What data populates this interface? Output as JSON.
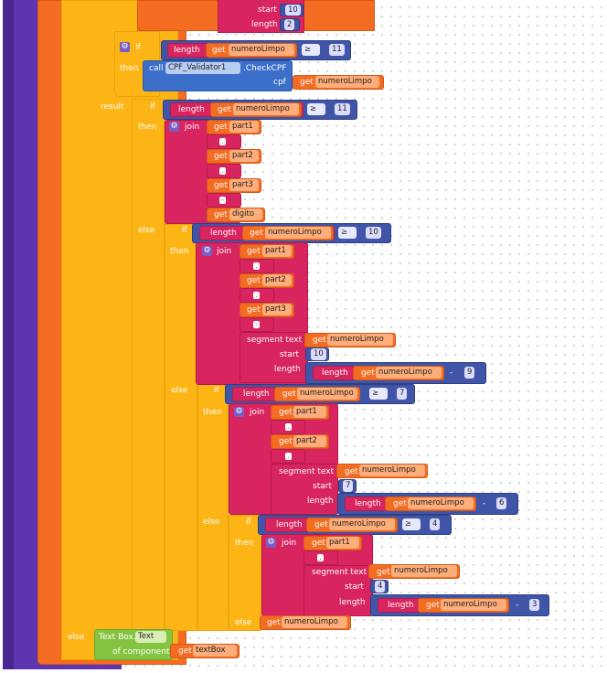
{
  "ops": {
    "ge": "≥",
    "minus": "-"
  },
  "keywords": {
    "if": "if",
    "then": "then",
    "else": "else",
    "result": "result",
    "join": "join",
    "get": "get",
    "length": "length",
    "start": "start",
    "call": "call",
    "cpf": "cpf",
    "segment_text": "segment text",
    "textbox": "Text Box.",
    "of_component": "of component"
  },
  "vars": {
    "numeroLimpo": "numeroLimpo",
    "part1": "part1",
    "part2": "part2",
    "part3": "part3",
    "digito": "digito",
    "textBox": "textBox"
  },
  "component": {
    "name": "CPF_Validator1",
    "method": ".CheckCPF"
  },
  "property": "Text",
  "strings": {
    "dot": ".",
    "dash": "-"
  },
  "numbers": {
    "n10": "10",
    "n2": "2",
    "n11": "11",
    "n9": "9",
    "n7": "7",
    "n6": "6",
    "n4": "4",
    "n3": "3"
  },
  "colors": {
    "control": "#fdb515",
    "math": "#4055a8",
    "text": "#d8245f",
    "variable": "#f36c21",
    "component": "#4c7fd0",
    "property": "#84c441",
    "procedure": "#5e35b1"
  }
}
